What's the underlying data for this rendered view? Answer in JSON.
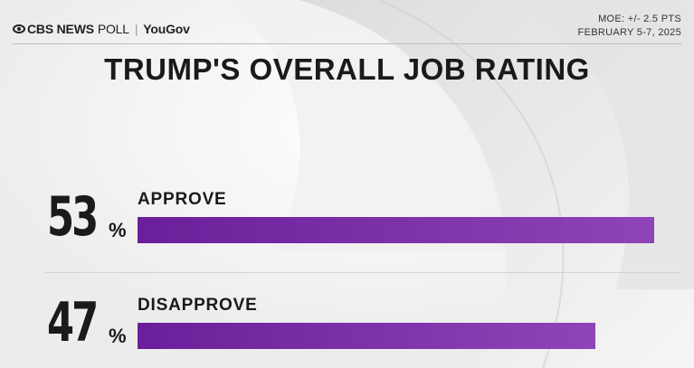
{
  "header": {
    "brand_cbs": "CBS NEWS",
    "brand_poll": "POLL",
    "brand_partner": "YouGov",
    "moe": "MOE: +/- 2.5 PTS",
    "dates": "FEBRUARY 5-7, 2025"
  },
  "colors": {
    "bar_start": "#6a1f9a",
    "bar_end": "#8f44b8",
    "text": "#1a1a1a"
  },
  "chart_data": {
    "type": "bar",
    "orientation": "horizontal",
    "title": "TRUMP'S OVERALL JOB RATING",
    "categories": [
      "APPROVE",
      "DISAPPROVE"
    ],
    "values": [
      53,
      47
    ],
    "value_labels": [
      "53",
      "47"
    ],
    "unit": "%",
    "xlim": [
      0,
      53
    ]
  }
}
